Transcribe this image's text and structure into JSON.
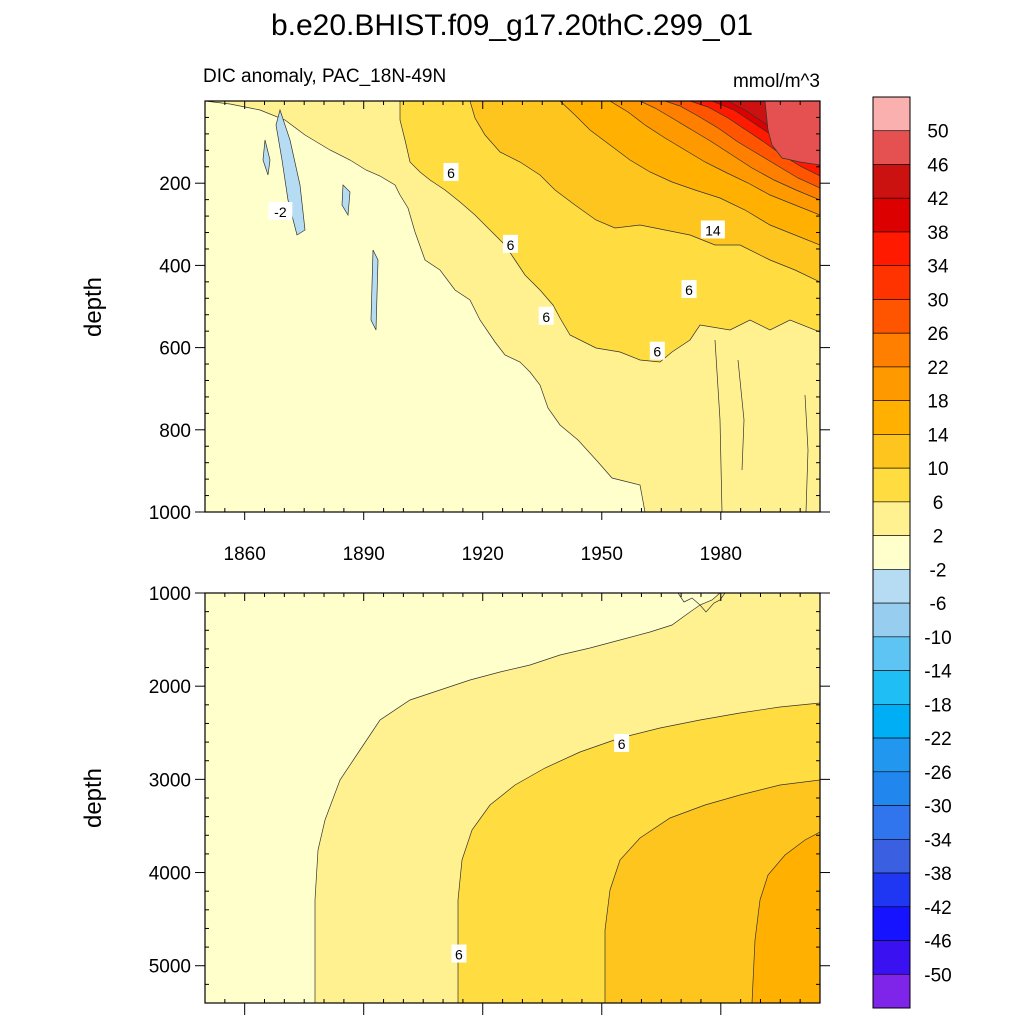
{
  "chart_data": {
    "type": "heatmap",
    "title": "b.e20.BHIST.f09_g17.20thC.299_01",
    "subtitle": "DIC anomaly, PAC_18N-49N",
    "units": "mmol/m^3",
    "x_range": [
      1850,
      2005
    ],
    "x_tick_labels": [
      "1860",
      "1890",
      "1920",
      "1950",
      "1980"
    ],
    "x_ticks": [
      1860,
      1890,
      1920,
      1950,
      1980
    ],
    "upper_panel": {
      "ylabel": "depth",
      "ylim": [
        0,
        1000
      ],
      "y_ticks": [
        200,
        400,
        600,
        800,
        1000
      ],
      "y_tick_labels": [
        "200",
        "400",
        "600",
        "800",
        "1000"
      ],
      "contour_labels": [
        {
          "text": "-2",
          "x": 1869,
          "depth": 270
        },
        {
          "text": "6",
          "x": 1912,
          "depth": 175
        },
        {
          "text": "6",
          "x": 1927,
          "depth": 350
        },
        {
          "text": "6",
          "x": 1936,
          "depth": 525
        },
        {
          "text": "14",
          "x": 1978,
          "depth": 315
        },
        {
          "text": "6",
          "x": 1972,
          "depth": 460
        },
        {
          "text": "6",
          "x": 1964,
          "depth": 610
        }
      ]
    },
    "lower_panel": {
      "ylabel": "depth",
      "ylim": [
        1000,
        5400
      ],
      "y_ticks": [
        1000,
        2000,
        3000,
        4000,
        5000
      ],
      "y_tick_labels": [
        "1000",
        "2000",
        "3000",
        "4000",
        "5000"
      ],
      "contour_labels": [
        {
          "text": "6",
          "x": 1955,
          "depth": 2620
        },
        {
          "text": "6",
          "x": 1914,
          "depth": 4880
        }
      ]
    },
    "colorbar": {
      "levels": [
        "50",
        "46",
        "42",
        "38",
        "34",
        "30",
        "26",
        "22",
        "18",
        "14",
        "10",
        "6",
        "2",
        "-2",
        "-6",
        "-10",
        "-14",
        "-18",
        "-22",
        "-26",
        "-30",
        "-34",
        "-38",
        "-42",
        "-46",
        "-50"
      ],
      "colors": [
        "#fbb0b0",
        "#e55050",
        "#cc1111",
        "#dd0000",
        "#ff1a00",
        "#ff3300",
        "#ff5500",
        "#ff7f00",
        "#ff9900",
        "#ffb000",
        "#ffc51f",
        "#ffdc3f",
        "#fff190",
        "#ffffcc",
        "#b5dcf3",
        "#97cdee",
        "#5ec4f4",
        "#1fbef5",
        "#00aef5",
        "#2297f0",
        "#2187ee",
        "#3175ee",
        "#3a5fe0",
        "#1f36f2",
        "#1513ff",
        "#3a12f2",
        "#7f25ea"
      ]
    }
  }
}
